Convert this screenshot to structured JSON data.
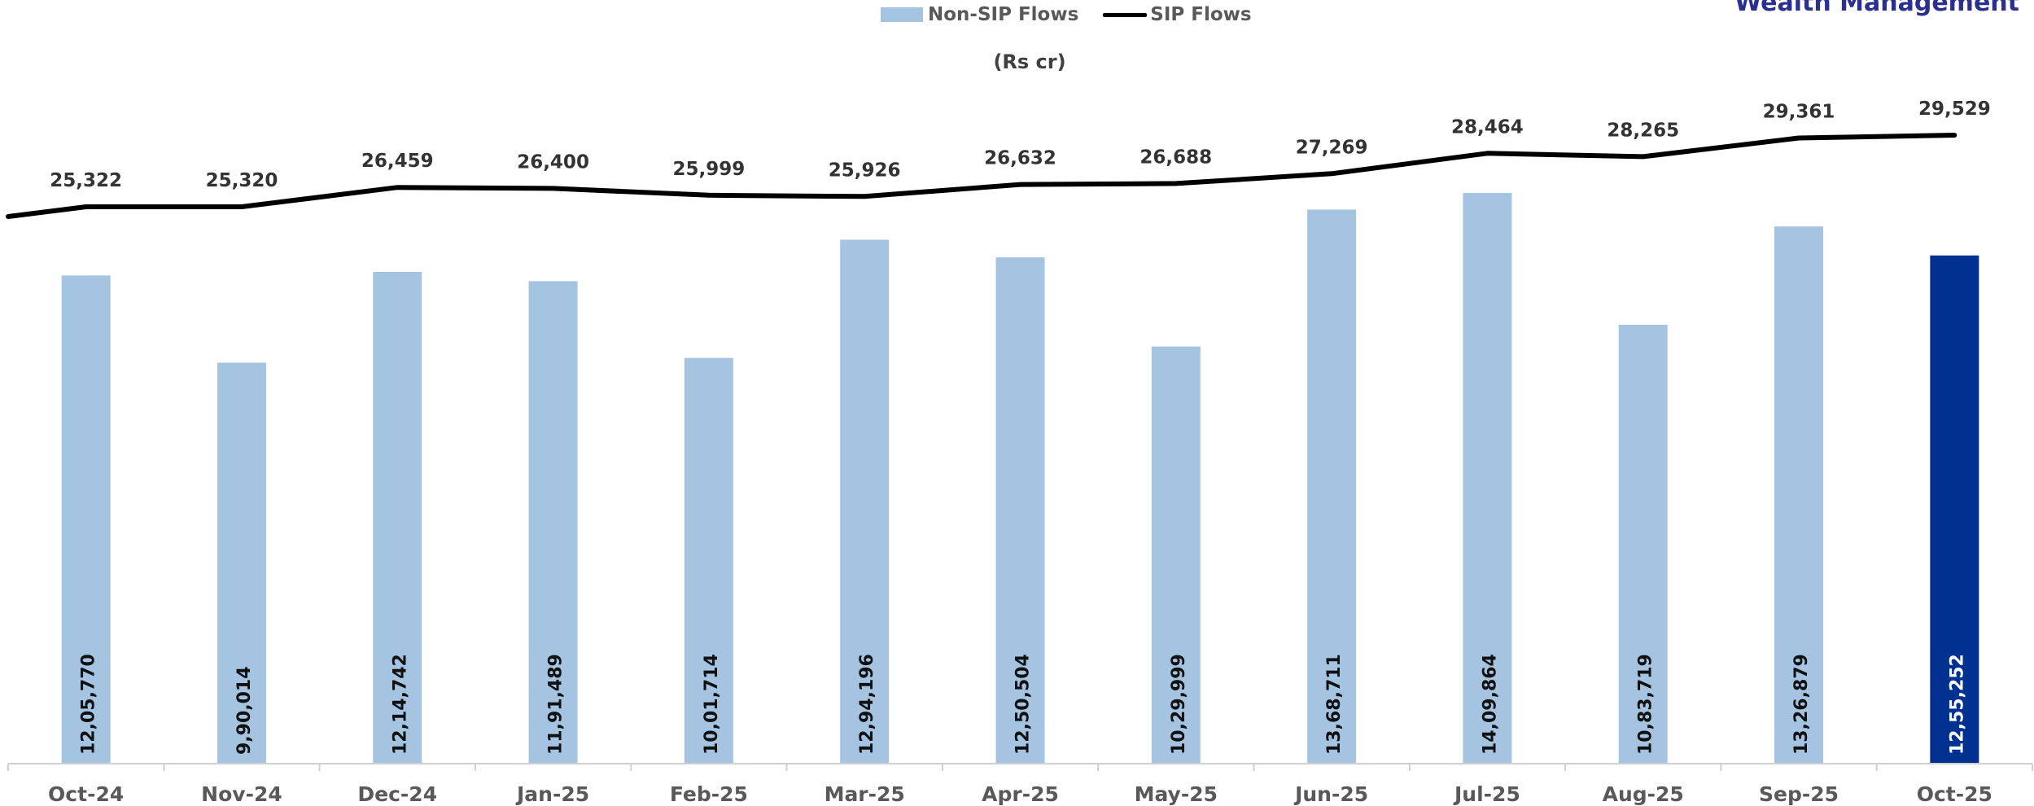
{
  "brand": {
    "text": "Wealth Management"
  },
  "legend": {
    "bar_label": "Non-SIP Flows",
    "line_label": "SIP Flows"
  },
  "chart_data": {
    "type": "bar",
    "unit_label": "(Rs cr)",
    "categories": [
      "Oct-24",
      "Nov-24",
      "Dec-24",
      "Jan-25",
      "Feb-25",
      "Mar-25",
      "Apr-25",
      "May-25",
      "Jun-25",
      "Jul-25",
      "Aug-25",
      "Sep-25",
      "Oct-25"
    ],
    "series": [
      {
        "name": "Non-SIP Flows",
        "type": "bar",
        "values": [
          1205770,
          990014,
          1214742,
          1191489,
          1001714,
          1294196,
          1250504,
          1029999,
          1368711,
          1409864,
          1083719,
          1326879,
          1255252
        ],
        "labels": [
          "12,05,770",
          "9,90,014",
          "12,14,742",
          "11,91,489",
          "10,01,714",
          "12,94,196",
          "12,50,504",
          "10,29,999",
          "13,68,711",
          "14,09,864",
          "10,83,719",
          "13,26,879",
          "12,55,252"
        ],
        "color": "#a4c4e2",
        "highlight_index": 12,
        "highlight_color": "#003090"
      },
      {
        "name": "SIP Flows",
        "type": "line",
        "values": [
          25322,
          25320,
          26459,
          26400,
          25999,
          25926,
          26632,
          26688,
          27269,
          28464,
          28265,
          29361,
          29529
        ],
        "labels": [
          "25,322",
          "25,320",
          "26,459",
          "26,400",
          "25,999",
          "25,926",
          "26,632",
          "26,688",
          "27,269",
          "28,464",
          "28,265",
          "29,361",
          "29,529"
        ],
        "color": "#000000"
      }
    ],
    "grid": false,
    "legend_position": "top-center"
  }
}
